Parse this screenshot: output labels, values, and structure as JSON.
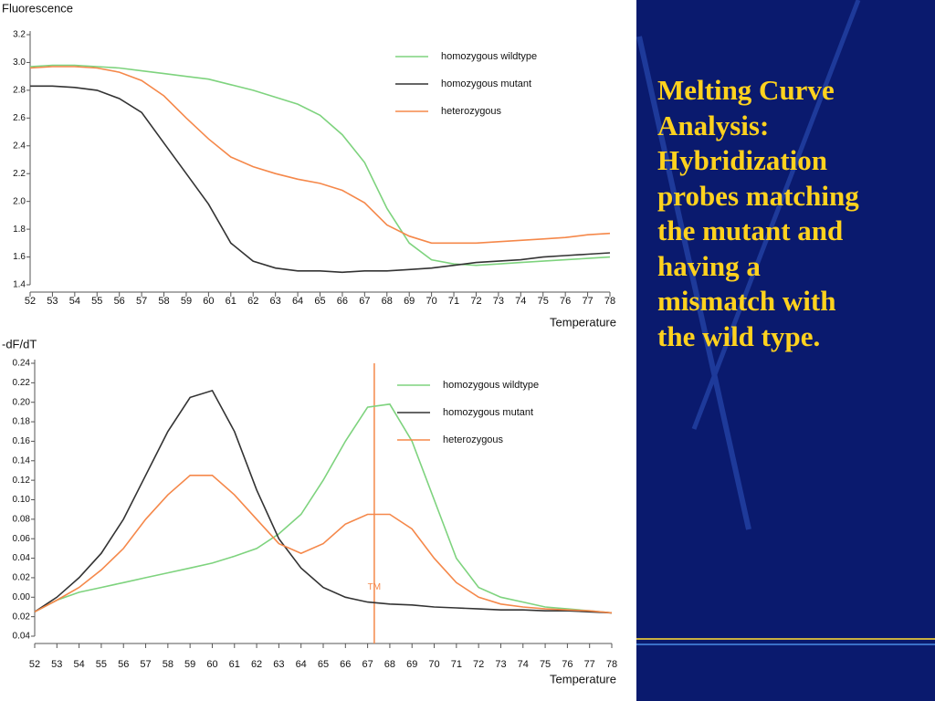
{
  "chart_data": [
    {
      "type": "line",
      "ylabel": "Fluorescence",
      "xlabel": "Temperature",
      "x": [
        52,
        53,
        54,
        55,
        56,
        57,
        58,
        59,
        60,
        61,
        62,
        63,
        64,
        65,
        66,
        67,
        68,
        69,
        70,
        71,
        72,
        73,
        74,
        75,
        76,
        77,
        78
      ],
      "xlim": [
        52,
        78
      ],
      "xticks": [
        52,
        53,
        54,
        55,
        56,
        57,
        58,
        59,
        60,
        61,
        62,
        63,
        64,
        65,
        66,
        67,
        68,
        69,
        70,
        71,
        72,
        73,
        74,
        75,
        76,
        77,
        78
      ],
      "ylim": [
        1.4,
        3.2
      ],
      "yticks": [
        1.4,
        1.6,
        1.8,
        {
          "value": 2,
          "label": "2.0"
        },
        2.2,
        2.4,
        2.6,
        2.8,
        {
          "value": 3,
          "label": "3.0"
        },
        3.2
      ],
      "legend": "upper right",
      "series": [
        {
          "name": "homozygous wildtype",
          "color": "#7ed37e",
          "values": [
            2.97,
            2.98,
            2.98,
            2.97,
            2.96,
            2.94,
            2.92,
            2.9,
            2.88,
            2.84,
            2.8,
            2.75,
            2.7,
            2.62,
            2.48,
            2.28,
            1.95,
            1.7,
            1.58,
            1.55,
            1.54,
            1.55,
            1.56,
            1.57,
            1.58,
            1.59,
            1.6
          ]
        },
        {
          "name": "homozygous mutant",
          "color": "#333333",
          "values": [
            2.83,
            2.83,
            2.82,
            2.8,
            2.74,
            2.64,
            2.42,
            2.2,
            1.98,
            1.7,
            1.57,
            1.52,
            1.5,
            1.5,
            1.49,
            1.5,
            1.5,
            1.51,
            1.52,
            1.54,
            1.56,
            1.57,
            1.58,
            1.6,
            1.61,
            1.62,
            1.63
          ]
        },
        {
          "name": "heterozygous",
          "color": "#f5884a",
          "values": [
            2.96,
            2.97,
            2.97,
            2.96,
            2.93,
            2.87,
            2.76,
            2.6,
            2.45,
            2.32,
            2.25,
            2.2,
            2.16,
            2.13,
            2.08,
            1.99,
            1.83,
            1.75,
            1.7,
            1.7,
            1.7,
            1.71,
            1.72,
            1.73,
            1.74,
            1.76,
            1.77
          ]
        }
      ]
    },
    {
      "type": "line",
      "ylabel": "-dF/dT",
      "xlabel": "Temperature",
      "x": [
        52,
        53,
        54,
        55,
        56,
        57,
        58,
        59,
        60,
        61,
        62,
        63,
        64,
        65,
        66,
        67,
        68,
        69,
        70,
        71,
        72,
        73,
        74,
        75,
        76,
        77,
        78
      ],
      "xlim": [
        52,
        78
      ],
      "xticks": [
        52,
        53,
        54,
        55,
        56,
        57,
        58,
        59,
        60,
        61,
        62,
        63,
        64,
        65,
        66,
        67,
        68,
        69,
        70,
        71,
        72,
        73,
        74,
        75,
        76,
        77,
        78
      ],
      "ylim": [
        -0.04,
        0.24
      ],
      "yticks": [
        {
          "value": -0.04,
          "label": "0.04"
        },
        {
          "value": -0.02,
          "label": "0.02"
        },
        {
          "value": 0,
          "label": "0.00"
        },
        0.02,
        0.04,
        0.06,
        0.08,
        {
          "value": 0.1,
          "label": "0.10"
        },
        0.12,
        0.14,
        0.16,
        0.18,
        {
          "value": 0.2,
          "label": "0.20"
        },
        0.22,
        0.24
      ],
      "legend": "upper right",
      "annotation": {
        "text": "TM",
        "x": 67.3,
        "color": "#f5884a"
      },
      "series": [
        {
          "name": "homozygous wildtype",
          "color": "#7ed37e",
          "values": [
            -0.015,
            -0.003,
            0.005,
            0.01,
            0.015,
            0.02,
            0.025,
            0.03,
            0.035,
            0.042,
            0.05,
            0.065,
            0.085,
            0.12,
            0.16,
            0.195,
            0.198,
            0.16,
            0.1,
            0.04,
            0.01,
            0.0,
            -0.005,
            -0.01,
            -0.012,
            -0.014,
            -0.016
          ]
        },
        {
          "name": "homozygous mutant",
          "color": "#333333",
          "values": [
            -0.015,
            0.0,
            0.02,
            0.045,
            0.08,
            0.125,
            0.17,
            0.205,
            0.212,
            0.17,
            0.11,
            0.06,
            0.03,
            0.01,
            0.0,
            -0.005,
            -0.007,
            -0.008,
            -0.01,
            -0.011,
            -0.012,
            -0.013,
            -0.013,
            -0.014,
            -0.014,
            -0.015,
            -0.016
          ]
        },
        {
          "name": "heterozygous",
          "color": "#f5884a",
          "values": [
            -0.015,
            -0.003,
            0.01,
            0.028,
            0.05,
            0.08,
            0.105,
            0.125,
            0.125,
            0.105,
            0.08,
            0.055,
            0.045,
            0.055,
            0.075,
            0.085,
            0.085,
            0.07,
            0.04,
            0.015,
            0.0,
            -0.007,
            -0.01,
            -0.012,
            -0.013,
            -0.014,
            -0.016
          ]
        }
      ]
    }
  ],
  "slide": {
    "lines": [
      "Melting Curve",
      "Analysis:",
      "Hybridization",
      "probes matching",
      "the mutant and",
      "having a",
      "mismatch with",
      "the wild type."
    ]
  }
}
